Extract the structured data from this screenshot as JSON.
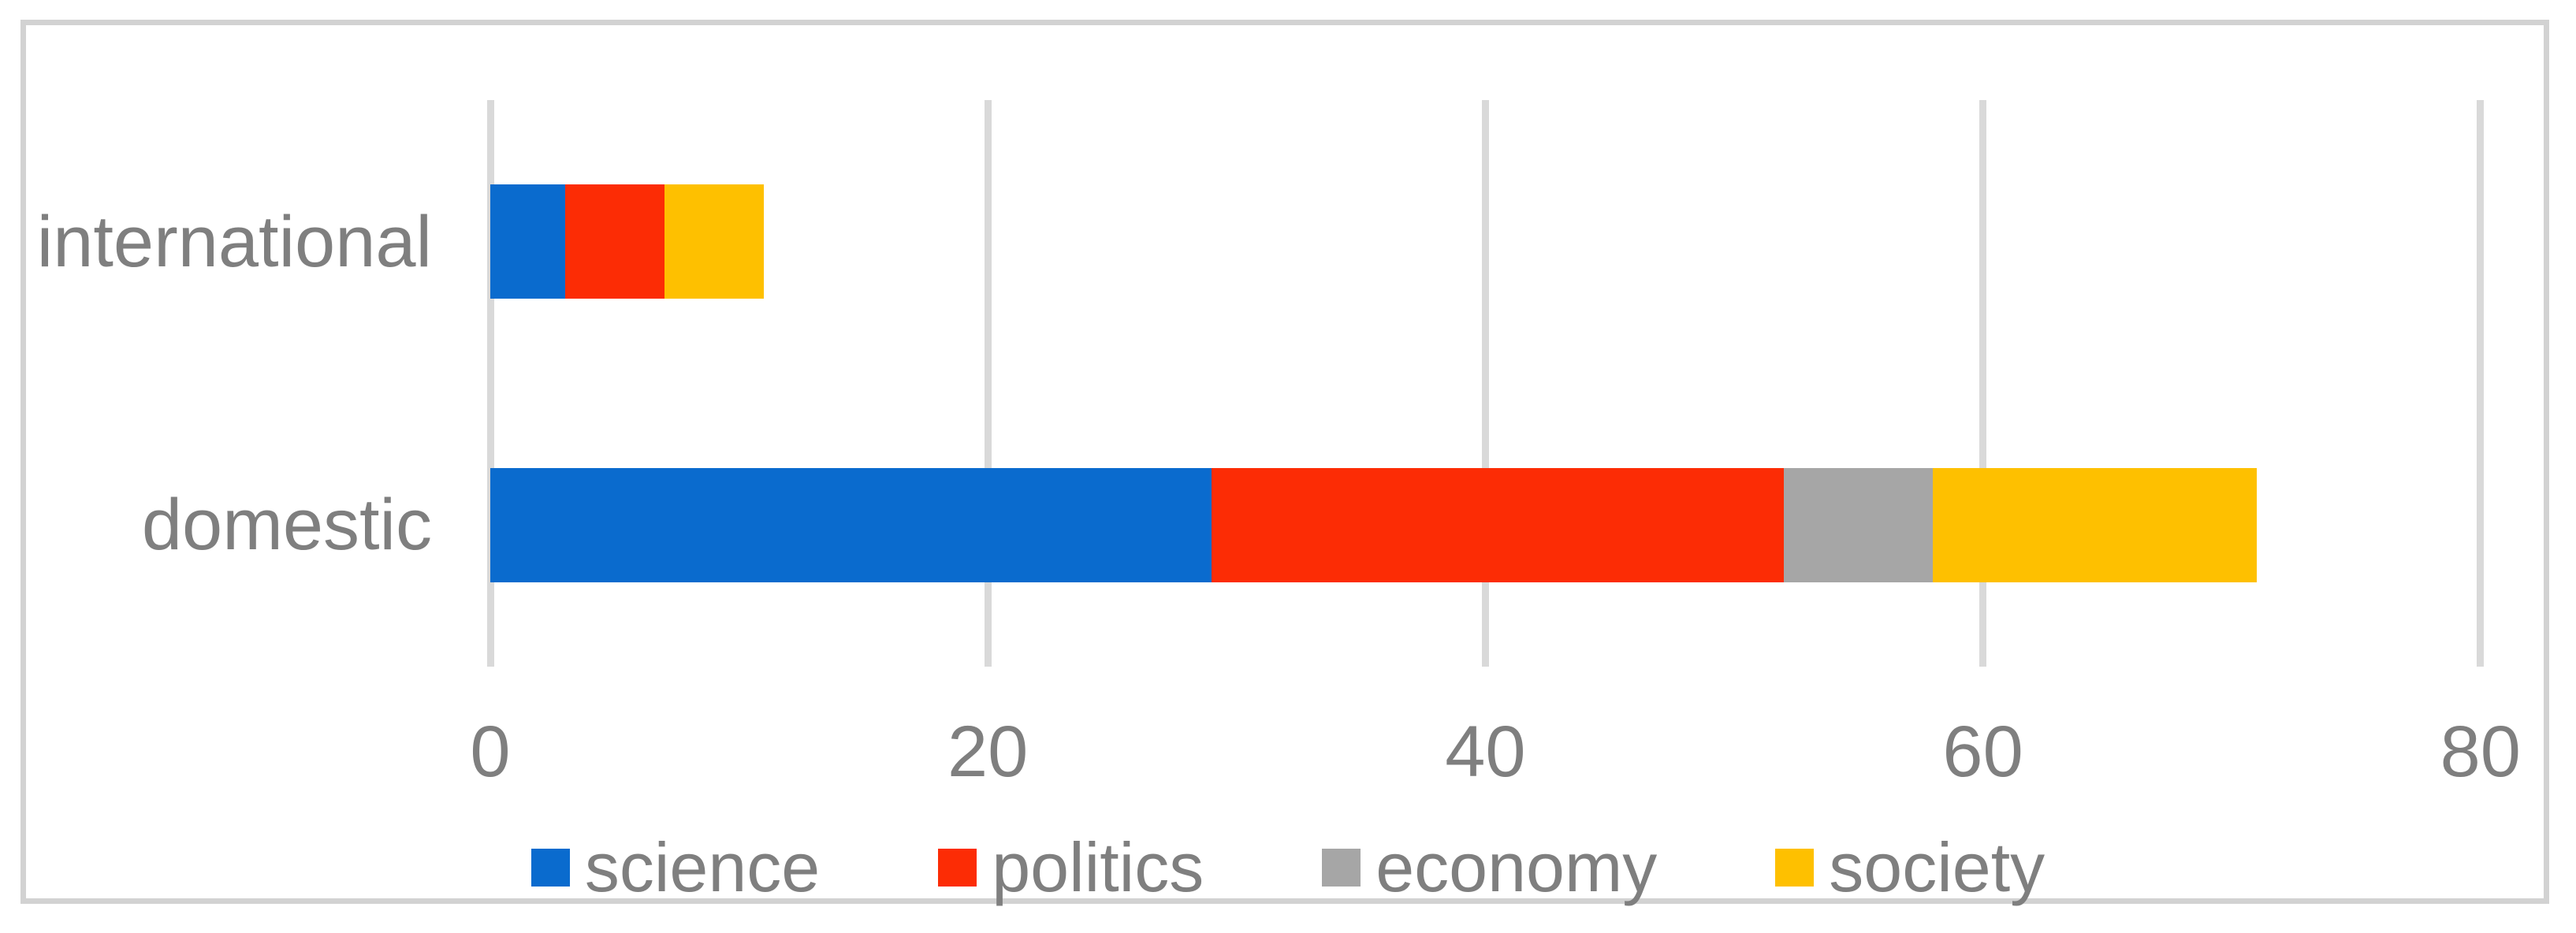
{
  "chart_data": {
    "type": "bar",
    "orientation": "horizontal",
    "stacked": true,
    "title": "",
    "xlabel": "",
    "ylabel": "",
    "categories": [
      "international",
      "domestic"
    ],
    "series": [
      {
        "name": "science",
        "color": "#0a6bce",
        "values": [
          3,
          29
        ]
      },
      {
        "name": "politics",
        "color": "#fc2c05",
        "values": [
          4,
          23
        ]
      },
      {
        "name": "economy",
        "color": "#a6a6a6",
        "values": [
          0,
          6
        ]
      },
      {
        "name": "society",
        "color": "#fec000",
        "values": [
          4,
          13
        ]
      }
    ],
    "xlim": [
      0,
      80
    ],
    "xticks": [
      0,
      20,
      40,
      60,
      80
    ],
    "grid": true,
    "gridline_color": "#d9d9d9",
    "frame_color": "#d2d2d2",
    "text_color": "#7f7f7f",
    "legend_position": "bottom"
  }
}
